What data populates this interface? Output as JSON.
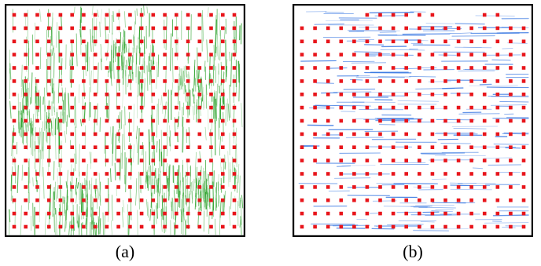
{
  "figure": {
    "panels": [
      {
        "id": "a",
        "caption": "(a)",
        "stroke_color": "#1a9a1a",
        "stroke_orientation": "vertical",
        "marker_color": "#e8151b",
        "grid_rows": 17,
        "grid_cols": 20
      },
      {
        "id": "b",
        "caption": "(b)",
        "stroke_color": "#2b6fe0",
        "stroke_orientation": "horizontal",
        "marker_color": "#e8151b",
        "grid_rows": 17,
        "grid_cols": 18
      }
    ]
  }
}
